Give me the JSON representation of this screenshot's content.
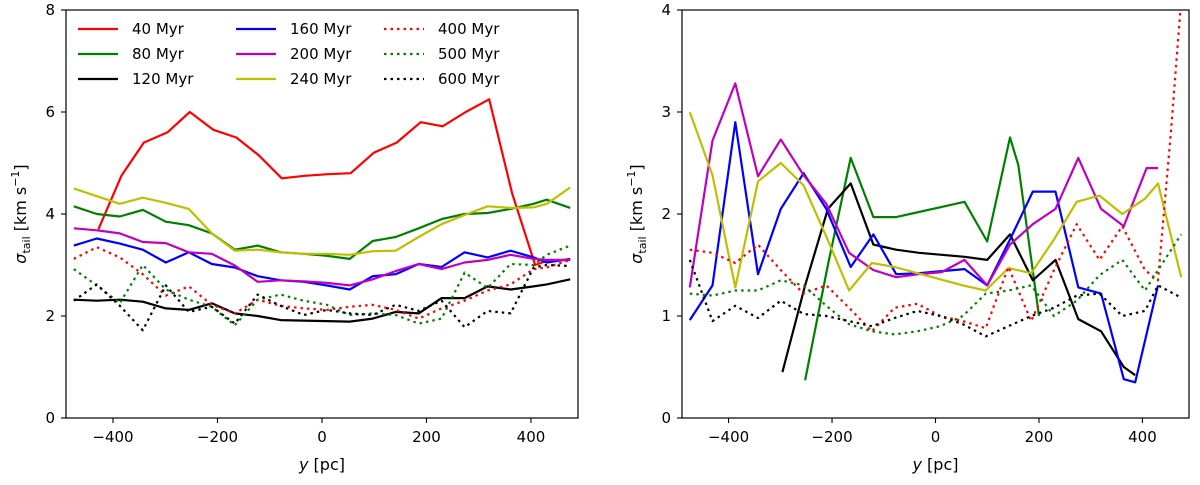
{
  "chart_data": [
    {
      "type": "line",
      "panel": "left",
      "xlabel_var": "y",
      "xlabel_unit": " [pc]",
      "ylabel_main": "σ",
      "ylabel_sub": "tail",
      "ylabel_unit": " [km s",
      "ylabel_exp": "−1",
      "ylabel_close": "]",
      "xlim": [
        -490,
        490
      ],
      "ylim": [
        0,
        8
      ],
      "xticks": [
        -400,
        -200,
        0,
        200,
        400
      ],
      "xtick_labels": [
        "−400",
        "−200",
        "0",
        "200",
        "400"
      ],
      "yticks": [
        0,
        2,
        4,
        6,
        8
      ],
      "ytick_labels": [
        "0",
        "2",
        "4",
        "6",
        "8"
      ],
      "legend_position": "top-left",
      "legend_columns": 3,
      "series": [
        {
          "name": "40 Myr",
          "color": "#ff0000",
          "dash": "solid",
          "x": [
            -428,
            -384,
            -341,
            -296,
            -253,
            -208,
            -164,
            -121,
            -77,
            -33,
            11,
            55,
            99,
            143,
            189,
            231,
            275,
            320,
            364,
            408,
            430,
            475
          ],
          "y": [
            3.7,
            4.75,
            5.4,
            5.6,
            6.0,
            5.65,
            5.5,
            5.15,
            4.7,
            4.75,
            4.78,
            4.8,
            5.2,
            5.4,
            5.8,
            5.72,
            6.0,
            6.25,
            4.4,
            3.0,
            3.08,
            3.1
          ]
        },
        {
          "name": "80 Myr",
          "color": "#008000",
          "dash": "solid",
          "x": [
            -475,
            -431,
            -387,
            -343,
            -299,
            -255,
            -211,
            -167,
            -123,
            -79,
            -35,
            9,
            53,
            97,
            141,
            185,
            229,
            273,
            317,
            361,
            405,
            430,
            475
          ],
          "y": [
            4.15,
            4.0,
            3.95,
            4.08,
            3.85,
            3.78,
            3.62,
            3.3,
            3.38,
            3.25,
            3.22,
            3.18,
            3.12,
            3.47,
            3.55,
            3.72,
            3.9,
            4.0,
            4.02,
            4.1,
            4.2,
            4.28,
            4.12
          ]
        },
        {
          "name": "120 Myr",
          "color": "#000000",
          "dash": "solid",
          "x": [
            -475,
            -431,
            -387,
            -343,
            -299,
            -255,
            -211,
            -167,
            -123,
            -79,
            -35,
            9,
            53,
            97,
            141,
            185,
            229,
            273,
            317,
            361,
            405,
            430,
            475
          ],
          "y": [
            2.32,
            2.3,
            2.32,
            2.28,
            2.15,
            2.12,
            2.25,
            2.05,
            2.0,
            1.92,
            1.91,
            1.9,
            1.89,
            1.95,
            2.08,
            2.05,
            2.35,
            2.35,
            2.58,
            2.52,
            2.58,
            2.62,
            2.72
          ]
        },
        {
          "name": "160 Myr",
          "color": "#0000ff",
          "dash": "solid",
          "x": [
            -475,
            -431,
            -387,
            -343,
            -299,
            -255,
            -211,
            -167,
            -123,
            -79,
            -35,
            9,
            53,
            97,
            141,
            185,
            229,
            273,
            317,
            361,
            405,
            430,
            475
          ],
          "y": [
            3.38,
            3.52,
            3.42,
            3.3,
            3.05,
            3.25,
            3.02,
            2.95,
            2.78,
            2.7,
            2.67,
            2.6,
            2.52,
            2.78,
            2.82,
            3.02,
            2.96,
            3.25,
            3.15,
            3.28,
            3.15,
            3.05,
            3.12
          ]
        },
        {
          "name": "200 Myr",
          "color": "#bf00bf",
          "dash": "solid",
          "x": [
            -475,
            -431,
            -387,
            -343,
            -299,
            -255,
            -211,
            -167,
            -123,
            -79,
            -35,
            9,
            53,
            97,
            141,
            185,
            229,
            273,
            317,
            361,
            405,
            430,
            475
          ],
          "y": [
            3.72,
            3.68,
            3.62,
            3.45,
            3.43,
            3.25,
            3.22,
            2.99,
            2.67,
            2.7,
            2.68,
            2.65,
            2.6,
            2.72,
            2.88,
            3.02,
            2.92,
            3.05,
            3.1,
            3.2,
            3.12,
            3.1,
            3.1
          ]
        },
        {
          "name": "240 Myr",
          "color": "#bfbf00",
          "dash": "solid",
          "x": [
            -475,
            -431,
            -387,
            -343,
            -299,
            -255,
            -211,
            -167,
            -123,
            -79,
            -35,
            9,
            53,
            97,
            141,
            185,
            229,
            273,
            317,
            361,
            405,
            430,
            475
          ],
          "y": [
            4.5,
            4.35,
            4.2,
            4.32,
            4.22,
            4.1,
            3.62,
            3.28,
            3.3,
            3.25,
            3.22,
            3.22,
            3.2,
            3.27,
            3.28,
            3.55,
            3.8,
            3.98,
            4.15,
            4.12,
            4.13,
            4.2,
            4.52
          ]
        },
        {
          "name": "400 Myr",
          "color": "#ff0000",
          "dash": "dotted",
          "x": [
            -475,
            -431,
            -387,
            -343,
            -299,
            -255,
            -211,
            -167,
            -123,
            -79,
            -35,
            9,
            53,
            97,
            141,
            185,
            229,
            273,
            317,
            361,
            405,
            430,
            475
          ],
          "y": [
            3.12,
            3.35,
            3.15,
            2.82,
            2.4,
            2.58,
            2.22,
            2.05,
            2.32,
            2.2,
            2.15,
            2.12,
            2.18,
            2.22,
            2.12,
            1.95,
            2.15,
            2.3,
            2.5,
            2.62,
            2.92,
            2.95,
            3.1
          ]
        },
        {
          "name": "500 Myr",
          "color": "#008000",
          "dash": "dotted",
          "x": [
            -475,
            -431,
            -387,
            -343,
            -299,
            -255,
            -211,
            -167,
            -123,
            -79,
            -35,
            9,
            53,
            97,
            141,
            185,
            229,
            273,
            317,
            361,
            405,
            430,
            475
          ],
          "y": [
            2.92,
            2.6,
            2.25,
            3.0,
            2.52,
            2.32,
            2.18,
            1.82,
            2.32,
            2.42,
            2.3,
            2.22,
            2.02,
            2.05,
            2.02,
            1.85,
            1.95,
            2.85,
            2.55,
            3.02,
            3.0,
            3.2,
            3.38
          ]
        },
        {
          "name": "600 Myr",
          "color": "#000000",
          "dash": "dotted",
          "x": [
            -475,
            -431,
            -387,
            -343,
            -299,
            -255,
            -211,
            -167,
            -123,
            -79,
            -35,
            9,
            53,
            97,
            141,
            185,
            229,
            273,
            317,
            361,
            405,
            430,
            475
          ],
          "y": [
            2.3,
            2.62,
            2.2,
            1.72,
            2.6,
            2.08,
            2.18,
            1.85,
            2.42,
            2.2,
            2.02,
            2.12,
            2.05,
            2.02,
            2.22,
            2.1,
            2.3,
            1.78,
            2.1,
            2.05,
            2.95,
            3.0,
            2.98
          ]
        }
      ]
    },
    {
      "type": "line",
      "panel": "right",
      "xlabel_var": "y",
      "xlabel_unit": " [pc]",
      "ylabel_main": "σ",
      "ylabel_sub": "tail",
      "ylabel_unit": " [km s",
      "ylabel_exp": "−1",
      "ylabel_close": "]",
      "xlim": [
        -490,
        490
      ],
      "ylim": [
        0,
        4
      ],
      "xticks": [
        -400,
        -200,
        0,
        200,
        400
      ],
      "xtick_labels": [
        "−400",
        "−200",
        "0",
        "200",
        "400"
      ],
      "yticks": [
        0,
        1,
        2,
        3,
        4
      ],
      "ytick_labels": [
        "0",
        "1",
        "2",
        "3",
        "4"
      ],
      "series": [
        {
          "name": "40 Myr",
          "color": "#ff0000",
          "dash": "solid",
          "x": [],
          "y": []
        },
        {
          "name": "80 Myr",
          "color": "#008000",
          "dash": "solid",
          "x": [
            -252,
            -208,
            -164,
            -120,
            -76,
            -32,
            12,
            56,
            100,
            144,
            160,
            200
          ],
          "y": [
            0.37,
            1.5,
            2.55,
            1.97,
            1.97,
            2.02,
            2.07,
            2.12,
            1.73,
            2.75,
            2.48,
            1.0
          ]
        },
        {
          "name": "120 Myr",
          "color": "#000000",
          "dash": "solid",
          "x": [
            -296,
            -252,
            -208,
            -164,
            -120,
            -76,
            -32,
            12,
            56,
            100,
            144,
            188,
            232,
            276,
            320,
            364,
            386
          ],
          "y": [
            0.45,
            1.3,
            2.05,
            2.3,
            1.7,
            1.65,
            1.62,
            1.6,
            1.58,
            1.55,
            1.8,
            1.35,
            1.55,
            0.97,
            0.85,
            0.5,
            0.42
          ]
        },
        {
          "name": "160 Myr",
          "color": "#0000ff",
          "dash": "solid",
          "x": [
            -475,
            -431,
            -387,
            -343,
            -299,
            -255,
            -211,
            -164,
            -120,
            -76,
            -32,
            12,
            56,
            100,
            144,
            188,
            232,
            276,
            320,
            364,
            386,
            430
          ],
          "y": [
            0.96,
            1.3,
            2.9,
            1.41,
            2.05,
            2.4,
            2.05,
            1.48,
            1.8,
            1.41,
            1.42,
            1.44,
            1.46,
            1.3,
            1.75,
            2.22,
            2.22,
            1.28,
            1.22,
            0.38,
            0.35,
            1.3
          ]
        },
        {
          "name": "200 Myr",
          "color": "#bf00bf",
          "dash": "solid",
          "x": [
            -475,
            -431,
            -387,
            -343,
            -299,
            -255,
            -211,
            -167,
            -120,
            -76,
            -32,
            12,
            56,
            100,
            144,
            188,
            232,
            276,
            320,
            364,
            408,
            430
          ],
          "y": [
            1.28,
            2.72,
            3.28,
            2.37,
            2.73,
            2.38,
            2.1,
            1.62,
            1.45,
            1.38,
            1.41,
            1.43,
            1.55,
            1.3,
            1.7,
            1.9,
            2.05,
            2.55,
            2.05,
            1.88,
            2.45,
            2.45
          ]
        },
        {
          "name": "240 Myr",
          "color": "#bfbf00",
          "dash": "solid",
          "x": [
            -475,
            -431,
            -387,
            -343,
            -299,
            -255,
            -211,
            -167,
            -123,
            -79,
            -35,
            9,
            53,
            97,
            141,
            185,
            229,
            273,
            317,
            361,
            405,
            430,
            475
          ],
          "y": [
            3.0,
            2.38,
            1.28,
            2.32,
            2.5,
            2.28,
            1.78,
            1.25,
            1.52,
            1.48,
            1.42,
            1.36,
            1.3,
            1.25,
            1.47,
            1.42,
            1.75,
            2.12,
            2.18,
            2.0,
            2.15,
            2.3,
            1.38
          ]
        },
        {
          "name": "400 Myr",
          "color": "#ff0000",
          "dash": "dotted",
          "x": [
            -475,
            -431,
            -387,
            -343,
            -299,
            -255,
            -211,
            -167,
            -123,
            -79,
            -35,
            9,
            53,
            97,
            141,
            185,
            229,
            273,
            317,
            361,
            405,
            430,
            455,
            475
          ],
          "y": [
            1.65,
            1.62,
            1.52,
            1.7,
            1.45,
            1.22,
            1.3,
            1.08,
            0.85,
            1.08,
            1.12,
            1.0,
            0.95,
            0.88,
            1.48,
            0.95,
            1.45,
            1.9,
            1.55,
            1.88,
            1.45,
            1.35,
            2.8,
            4.1
          ]
        },
        {
          "name": "500 Myr",
          "color": "#008000",
          "dash": "dotted",
          "x": [
            -475,
            -431,
            -387,
            -343,
            -299,
            -255,
            -211,
            -167,
            -123,
            -79,
            -35,
            9,
            53,
            97,
            141,
            185,
            229,
            273,
            317,
            361,
            405,
            430,
            475
          ],
          "y": [
            1.22,
            1.2,
            1.25,
            1.25,
            1.35,
            1.3,
            1.1,
            0.92,
            0.85,
            0.82,
            0.85,
            0.9,
            1.0,
            1.22,
            1.25,
            1.3,
            1.0,
            1.15,
            1.4,
            1.55,
            1.25,
            1.45,
            1.8
          ]
        },
        {
          "name": "600 Myr",
          "color": "#000000",
          "dash": "dotted",
          "x": [
            -475,
            -431,
            -387,
            -343,
            -299,
            -255,
            -211,
            -167,
            -123,
            -79,
            -35,
            9,
            53,
            97,
            141,
            185,
            229,
            273,
            317,
            361,
            405,
            430,
            475
          ],
          "y": [
            1.55,
            0.95,
            1.1,
            0.98,
            1.15,
            1.02,
            1.0,
            0.95,
            0.9,
            0.98,
            1.05,
            1.0,
            0.92,
            0.8,
            0.9,
            1.0,
            1.08,
            1.2,
            1.22,
            1.0,
            1.05,
            1.3,
            1.18
          ]
        }
      ]
    }
  ]
}
